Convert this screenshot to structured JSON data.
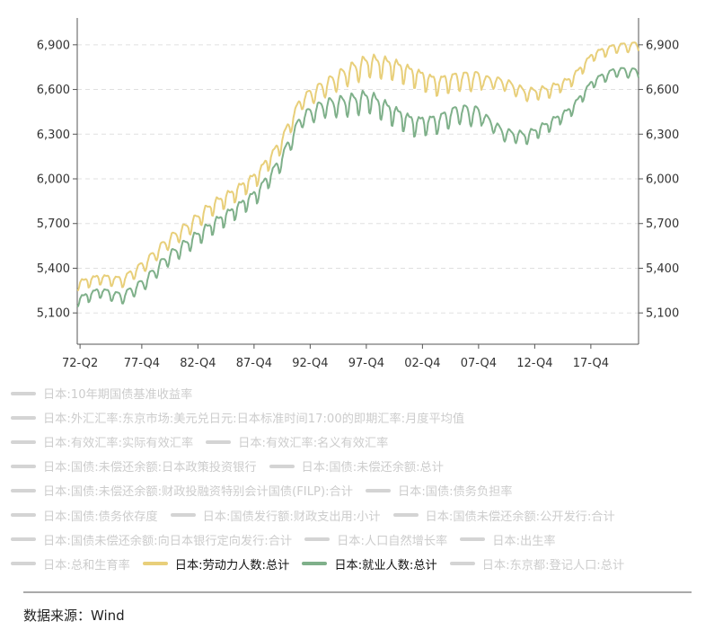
{
  "chart_data": {
    "type": "line",
    "title": "",
    "xlabel": "",
    "ylabel": "",
    "ylim": [
      4890,
      7080
    ],
    "yticks": [
      5100,
      5400,
      5700,
      6000,
      6300,
      6600,
      6900
    ],
    "ytick_labels": [
      "5,100",
      "5,400",
      "5,700",
      "6,000",
      "6,300",
      "6,600",
      "6,900"
    ],
    "xticks": [
      1972.25,
      1977.75,
      1982.75,
      1987.75,
      1992.75,
      1997.75,
      2002.75,
      2007.75,
      2012.75,
      2017.75
    ],
    "xtick_labels": [
      "72-Q2",
      "77-Q4",
      "82-Q4",
      "87-Q4",
      "92-Q4",
      "97-Q4",
      "02-Q4",
      "07-Q4",
      "12-Q4",
      "17-Q4"
    ],
    "xlim": [
      1972.0,
      2022.0
    ],
    "series": [
      {
        "name": "日本:劳动力人数:总计",
        "color": "#e8cf7a",
        "x": [
          1972,
          1974,
          1976,
          1978,
          1980,
          1982,
          1984,
          1986,
          1988,
          1990,
          1992,
          1994,
          1996,
          1998,
          2000,
          2002,
          2004,
          2006,
          2008,
          2010,
          2012,
          2014,
          2016,
          2018,
          2020,
          2022
        ],
        "values": [
          5290,
          5330,
          5310,
          5420,
          5570,
          5680,
          5810,
          5900,
          6010,
          6210,
          6520,
          6610,
          6700,
          6770,
          6750,
          6690,
          6630,
          6660,
          6660,
          6640,
          6570,
          6590,
          6660,
          6830,
          6880,
          6890
        ]
      },
      {
        "name": "日本:就业人数:总计",
        "color": "#7fb08a",
        "x": [
          1972,
          1974,
          1976,
          1978,
          1980,
          1982,
          1984,
          1986,
          1988,
          1990,
          1992,
          1994,
          1996,
          1998,
          2000,
          2002,
          2004,
          2006,
          2008,
          2010,
          2012,
          2014,
          2016,
          2018,
          2020,
          2022
        ],
        "values": [
          5180,
          5240,
          5200,
          5300,
          5460,
          5570,
          5680,
          5780,
          5890,
          6090,
          6400,
          6480,
          6500,
          6530,
          6440,
          6360,
          6370,
          6440,
          6420,
          6300,
          6280,
          6360,
          6460,
          6650,
          6720,
          6710
        ]
      }
    ],
    "legend_placement": "bottom",
    "legend": [
      [
        "日本:10年期国债基准收益率"
      ],
      [
        "日本:外汇汇率:东京市场:美元兑日元:日本标准时间17:00的即期汇率:月度平均值"
      ],
      [
        "日本:有效汇率:实际有效汇率",
        "日本:有效汇率:名义有效汇率"
      ],
      [
        "日本:国债:未偿还余额:日本政策投资银行",
        "日本:国债:未偿还余额:总计"
      ],
      [
        "日本:国债:未偿还余额:财政投融资特别会计国债(FILP):合计",
        "日本:国债:债务负担率"
      ],
      [
        "日本:国债:债务依存度",
        "日本:国债发行额:财政支出用:小计",
        "日本:国债未偿还余额:公开发行:合计"
      ],
      [
        "日本:国债未偿还余额:向日本银行定向发行:合计",
        "日本:人口自然增长率",
        "日本:出生率"
      ],
      [
        "日本:总和生育率",
        "日本:劳动力人数:总计",
        "日本:就业人数:总计",
        "日本:东京都:登记人口:总计"
      ]
    ],
    "legend_active": [
      "日本:劳动力人数:总计",
      "日本:就业人数:总计"
    ]
  },
  "footer": {
    "source": "数据来源：Wind"
  }
}
